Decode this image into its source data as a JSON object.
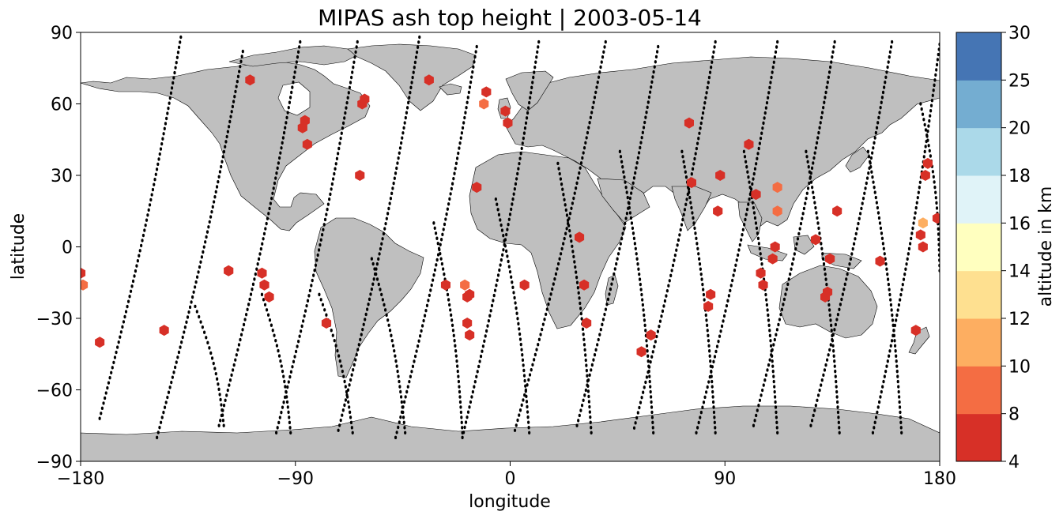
{
  "title": "MIPAS ash top height | 2003-05-14",
  "xlabel": "longitude",
  "ylabel": "latitude",
  "colorbar_label": "altitude in km",
  "colors": {
    "land": "#bfbfbf",
    "ocean": "#ffffff",
    "track": "#000000"
  },
  "map": {
    "x_ticks": [
      -180,
      -90,
      0,
      90,
      180
    ],
    "x_tick_labels": [
      "−180",
      "−90",
      "0",
      "90",
      "180"
    ],
    "y_ticks": [
      90,
      60,
      30,
      0,
      -30,
      -60,
      -90
    ],
    "y_tick_labels": [
      "90",
      "60",
      "30",
      "0",
      "−30",
      "−60",
      "−90"
    ],
    "xlim": [
      -180,
      180
    ],
    "ylim": [
      -90,
      90
    ],
    "colorbar": {
      "boundaries": [
        4,
        8,
        10,
        12,
        14,
        16,
        18,
        20,
        25,
        30
      ],
      "tick_labels": [
        "4",
        "8",
        "10",
        "12",
        "14",
        "16",
        "18",
        "20",
        "25",
        "30"
      ],
      "colors": [
        "#a50026",
        "#d73027",
        "#f46d43",
        "#fdae61",
        "#fee090",
        "#ffffbf",
        "#e0f3f8",
        "#abd9e9",
        "#74add1",
        "#4575b4",
        "#313695"
      ]
    },
    "orbit_tracks": [
      {
        "start": [
          -172,
          -72
        ],
        "end": [
          -138,
          88
        ]
      },
      {
        "start": [
          -148,
          -80
        ],
        "end": [
          -112,
          82
        ]
      },
      {
        "start": [
          -122,
          -75
        ],
        "end": [
          -88,
          86
        ]
      },
      {
        "start": [
          -98,
          -78
        ],
        "end": [
          -64,
          86
        ]
      },
      {
        "start": [
          -72,
          -77
        ],
        "end": [
          -38,
          88
        ]
      },
      {
        "start": [
          -48,
          -80
        ],
        "end": [
          -14,
          84
        ]
      },
      {
        "start": [
          -20,
          -80
        ],
        "end": [
          12,
          86
        ]
      },
      {
        "start": [
          2,
          -77
        ],
        "end": [
          40,
          86
        ]
      },
      {
        "start": [
          28,
          -75
        ],
        "end": [
          62,
          84
        ]
      },
      {
        "start": [
          52,
          -76
        ],
        "end": [
          86,
          86
        ]
      },
      {
        "start": [
          78,
          -78
        ],
        "end": [
          112,
          86
        ]
      },
      {
        "start": [
          102,
          -75
        ],
        "end": [
          136,
          86
        ]
      },
      {
        "start": [
          126,
          -75
        ],
        "end": [
          160,
          86
        ]
      },
      {
        "start": [
          152,
          -78
        ],
        "end": [
          180,
          85
        ]
      },
      {
        "start": [
          -132,
          -25
        ],
        "end": [
          -120,
          -75
        ]
      },
      {
        "start": [
          -104,
          -20
        ],
        "end": [
          -92,
          -78
        ]
      },
      {
        "start": [
          -80,
          -20
        ],
        "end": [
          -66,
          -78
        ]
      },
      {
        "start": [
          -58,
          -5
        ],
        "end": [
          -44,
          -78
        ]
      },
      {
        "start": [
          -32,
          10
        ],
        "end": [
          -20,
          -78
        ]
      },
      {
        "start": [
          -6,
          20
        ],
        "end": [
          8,
          -78
        ]
      },
      {
        "start": [
          20,
          35
        ],
        "end": [
          34,
          -78
        ]
      },
      {
        "start": [
          46,
          40
        ],
        "end": [
          60,
          -78
        ]
      },
      {
        "start": [
          72,
          40
        ],
        "end": [
          86,
          -78
        ]
      },
      {
        "start": [
          98,
          40
        ],
        "end": [
          112,
          -78
        ]
      },
      {
        "start": [
          124,
          40
        ],
        "end": [
          138,
          -78
        ]
      },
      {
        "start": [
          150,
          40
        ],
        "end": [
          164,
          -78
        ]
      },
      {
        "start": [
          172,
          60
        ],
        "end": [
          180,
          -10
        ]
      }
    ],
    "ash_points": [
      {
        "lon": -180,
        "lat": -11,
        "alt": 6
      },
      {
        "lon": -179,
        "lat": -16,
        "alt": 9
      },
      {
        "lon": -172,
        "lat": -40,
        "alt": 6
      },
      {
        "lon": -145,
        "lat": -35,
        "alt": 6
      },
      {
        "lon": -118,
        "lat": -10,
        "alt": 6
      },
      {
        "lon": -109,
        "lat": 70,
        "alt": 6
      },
      {
        "lon": -104,
        "lat": -11,
        "alt": 6
      },
      {
        "lon": -103,
        "lat": -16,
        "alt": 6
      },
      {
        "lon": -101,
        "lat": -21,
        "alt": 6
      },
      {
        "lon": -87,
        "lat": 50,
        "alt": 6
      },
      {
        "lon": -86,
        "lat": 53,
        "alt": 6
      },
      {
        "lon": -85,
        "lat": 43,
        "alt": 6
      },
      {
        "lon": -77,
        "lat": -32,
        "alt": 6
      },
      {
        "lon": -63,
        "lat": 30,
        "alt": 6
      },
      {
        "lon": -62,
        "lat": 60,
        "alt": 6
      },
      {
        "lon": -61,
        "lat": 62,
        "alt": 6
      },
      {
        "lon": -34,
        "lat": 70,
        "alt": 6
      },
      {
        "lon": -27,
        "lat": -16,
        "alt": 6
      },
      {
        "lon": -19,
        "lat": -16,
        "alt": 9
      },
      {
        "lon": -18,
        "lat": -21,
        "alt": 6
      },
      {
        "lon": -17,
        "lat": -20,
        "alt": 6
      },
      {
        "lon": -18,
        "lat": -32,
        "alt": 6
      },
      {
        "lon": -17,
        "lat": -37,
        "alt": 6
      },
      {
        "lon": -14,
        "lat": 25,
        "alt": 6
      },
      {
        "lon": -11,
        "lat": 60,
        "alt": 9
      },
      {
        "lon": -10,
        "lat": 65,
        "alt": 6
      },
      {
        "lon": -2,
        "lat": 57,
        "alt": 6
      },
      {
        "lon": -1,
        "lat": 52,
        "alt": 6
      },
      {
        "lon": 6,
        "lat": -16,
        "alt": 6
      },
      {
        "lon": 29,
        "lat": 4,
        "alt": 6
      },
      {
        "lon": 31,
        "lat": -16,
        "alt": 6
      },
      {
        "lon": 32,
        "lat": -32,
        "alt": 6
      },
      {
        "lon": 55,
        "lat": -44,
        "alt": 6
      },
      {
        "lon": 59,
        "lat": -37,
        "alt": 6
      },
      {
        "lon": 75,
        "lat": 52,
        "alt": 6
      },
      {
        "lon": 76,
        "lat": 27,
        "alt": 6
      },
      {
        "lon": 83,
        "lat": -25,
        "alt": 6
      },
      {
        "lon": 84,
        "lat": -20,
        "alt": 6
      },
      {
        "lon": 87,
        "lat": 15,
        "alt": 6
      },
      {
        "lon": 88,
        "lat": 30,
        "alt": 6
      },
      {
        "lon": 100,
        "lat": 43,
        "alt": 6
      },
      {
        "lon": 103,
        "lat": 22,
        "alt": 6
      },
      {
        "lon": 105,
        "lat": -11,
        "alt": 6
      },
      {
        "lon": 106,
        "lat": -16,
        "alt": 6
      },
      {
        "lon": 110,
        "lat": -5,
        "alt": 6
      },
      {
        "lon": 111,
        "lat": 0,
        "alt": 6
      },
      {
        "lon": 112,
        "lat": 25,
        "alt": 9
      },
      {
        "lon": 112,
        "lat": 15,
        "alt": 9
      },
      {
        "lon": 128,
        "lat": 3,
        "alt": 6
      },
      {
        "lon": 132,
        "lat": -21,
        "alt": 6
      },
      {
        "lon": 133,
        "lat": -19,
        "alt": 6
      },
      {
        "lon": 134,
        "lat": -5,
        "alt": 6
      },
      {
        "lon": 137,
        "lat": 15,
        "alt": 6
      },
      {
        "lon": 155,
        "lat": -6,
        "alt": 6
      },
      {
        "lon": 170,
        "lat": -35,
        "alt": 6
      },
      {
        "lon": 172,
        "lat": 5,
        "alt": 6
      },
      {
        "lon": 173,
        "lat": 0,
        "alt": 6
      },
      {
        "lon": 173,
        "lat": 10,
        "alt": 11
      },
      {
        "lon": 174,
        "lat": 30,
        "alt": 6
      },
      {
        "lon": 175,
        "lat": 35,
        "alt": 6
      },
      {
        "lon": 179,
        "lat": 12,
        "alt": 6
      }
    ]
  }
}
